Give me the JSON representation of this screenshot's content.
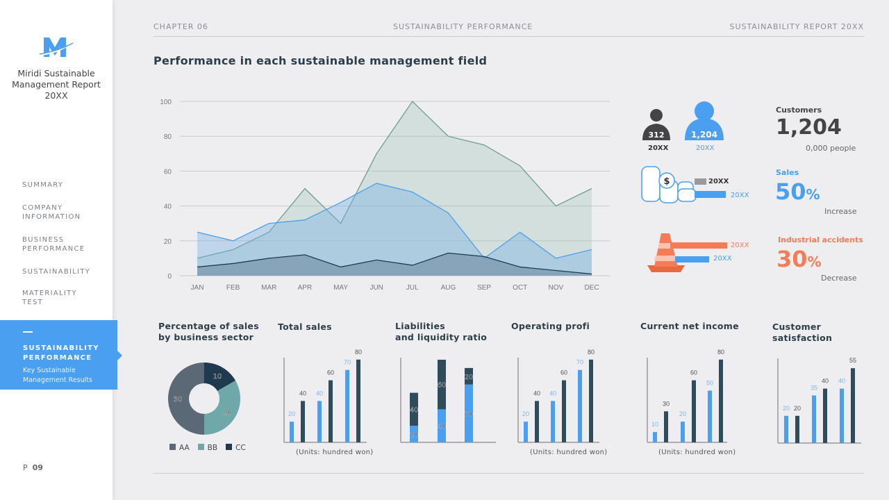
{
  "sidebar": {
    "brand": "Miridi Sustainable Management Report 20XX",
    "brand_lines": [
      "Miridi Sustainable",
      "Management Report",
      "20XX"
    ],
    "items": [
      {
        "label": "SUMMARY"
      },
      {
        "label": "COMPANY",
        "label2": "INFORMATION"
      },
      {
        "label": "BUSINESS",
        "label2": "PERFORMANCE"
      },
      {
        "label": "SUSTAINABILITY"
      },
      {
        "label": "MATERIALITY",
        "label2": "TEST"
      }
    ],
    "active": {
      "label": "SUSTAINABILITY",
      "label2": "PERFORMANCE",
      "sub1": "Key Sustainable",
      "sub2": "Management Results"
    },
    "page_prefix": "P",
    "page": "09",
    "accent": "#4a9ff0"
  },
  "header": {
    "chapter": "CHAPTER 06",
    "section": "SUSTAINABILITY PERFORMANCE",
    "report": "SUSTAINABILITY REPORT 20XX"
  },
  "main_title": "Performance in each sustainable management field",
  "chart_data": [
    {
      "type": "area",
      "categories": [
        "JAN",
        "FEB",
        "MAR",
        "APR",
        "MAY",
        "JUN",
        "JUL",
        "AUG",
        "SEP",
        "OCT",
        "NOV",
        "DEC"
      ],
      "ylim": [
        0,
        100
      ],
      "yticks": [
        0,
        20,
        40,
        60,
        80,
        100
      ],
      "grid": true,
      "series": [
        {
          "color": "#6a9e8e",
          "values": [
            10,
            15,
            25,
            50,
            30,
            70,
            100,
            80,
            75,
            63,
            40,
            50
          ]
        },
        {
          "color": "#4a9ff0",
          "values": [
            25,
            20,
            30,
            32,
            42,
            53,
            48,
            36,
            10,
            25,
            10,
            15
          ]
        },
        {
          "color": "#1f3a4f",
          "values": [
            5,
            7,
            10,
            12,
            5,
            9,
            6,
            13,
            11,
            5,
            3,
            1
          ]
        }
      ]
    },
    {
      "type": "pie",
      "title": "Percentage of sales by business sector",
      "title_lines": [
        "Percentage of sales",
        "by business sector"
      ],
      "legend": [
        "AA",
        "BB",
        "CC"
      ],
      "values": [
        30,
        20,
        10
      ],
      "colors": [
        "#5b6876",
        "#6fa8a8",
        "#1f3a4f"
      ]
    },
    {
      "type": "bar",
      "title": "Total sales",
      "unit": "(Units: hundred won)",
      "values": [
        20,
        40,
        40,
        60,
        70,
        80
      ]
    },
    {
      "type": "bar",
      "stacked": true,
      "title": "Liabilities and liquidity ratio",
      "title_lines": [
        "Liabilities",
        "and liquidity ratio"
      ],
      "series": [
        {
          "color": "#4a9ff0",
          "values": [
            20,
            40,
            70
          ]
        },
        {
          "color": "#2e4c5c",
          "values": [
            40,
            60,
            20
          ]
        }
      ]
    },
    {
      "type": "bar",
      "title": "Operating profi",
      "unit": "(Units: hundred won)",
      "values": [
        20,
        40,
        40,
        60,
        70,
        80
      ]
    },
    {
      "type": "bar",
      "title": "Current net income",
      "unit": "(Units: hundred won)",
      "values": [
        10,
        30,
        20,
        60,
        50,
        80
      ]
    },
    {
      "type": "bar",
      "title": "Customer satisfaction",
      "title_lines": [
        "Customer",
        "satisfaction"
      ],
      "values": [
        20,
        20,
        35,
        40,
        40,
        55
      ]
    }
  ],
  "stats": {
    "customers": {
      "label": "Customers",
      "value": "1,204",
      "unit": "0,000 people",
      "prev_value": "312",
      "prev_year": "20XX",
      "cur_value": "1,204",
      "cur_year": "20XX"
    },
    "sales": {
      "label": "Sales",
      "value": "50",
      "pct": "%",
      "note": "Increase",
      "bar1_year": "20XX",
      "bar2_year": "20XX",
      "color": "#4a9ff0"
    },
    "accidents": {
      "label": "Industrial accidents",
      "value": "30",
      "pct": "%",
      "note": "Decrease",
      "bar1_year": "20XX",
      "bar2_year": "20XX",
      "color": "#f47c56"
    }
  },
  "colors": {
    "blue": "#4a9ff0",
    "dark": "#2e4c5c"
  }
}
